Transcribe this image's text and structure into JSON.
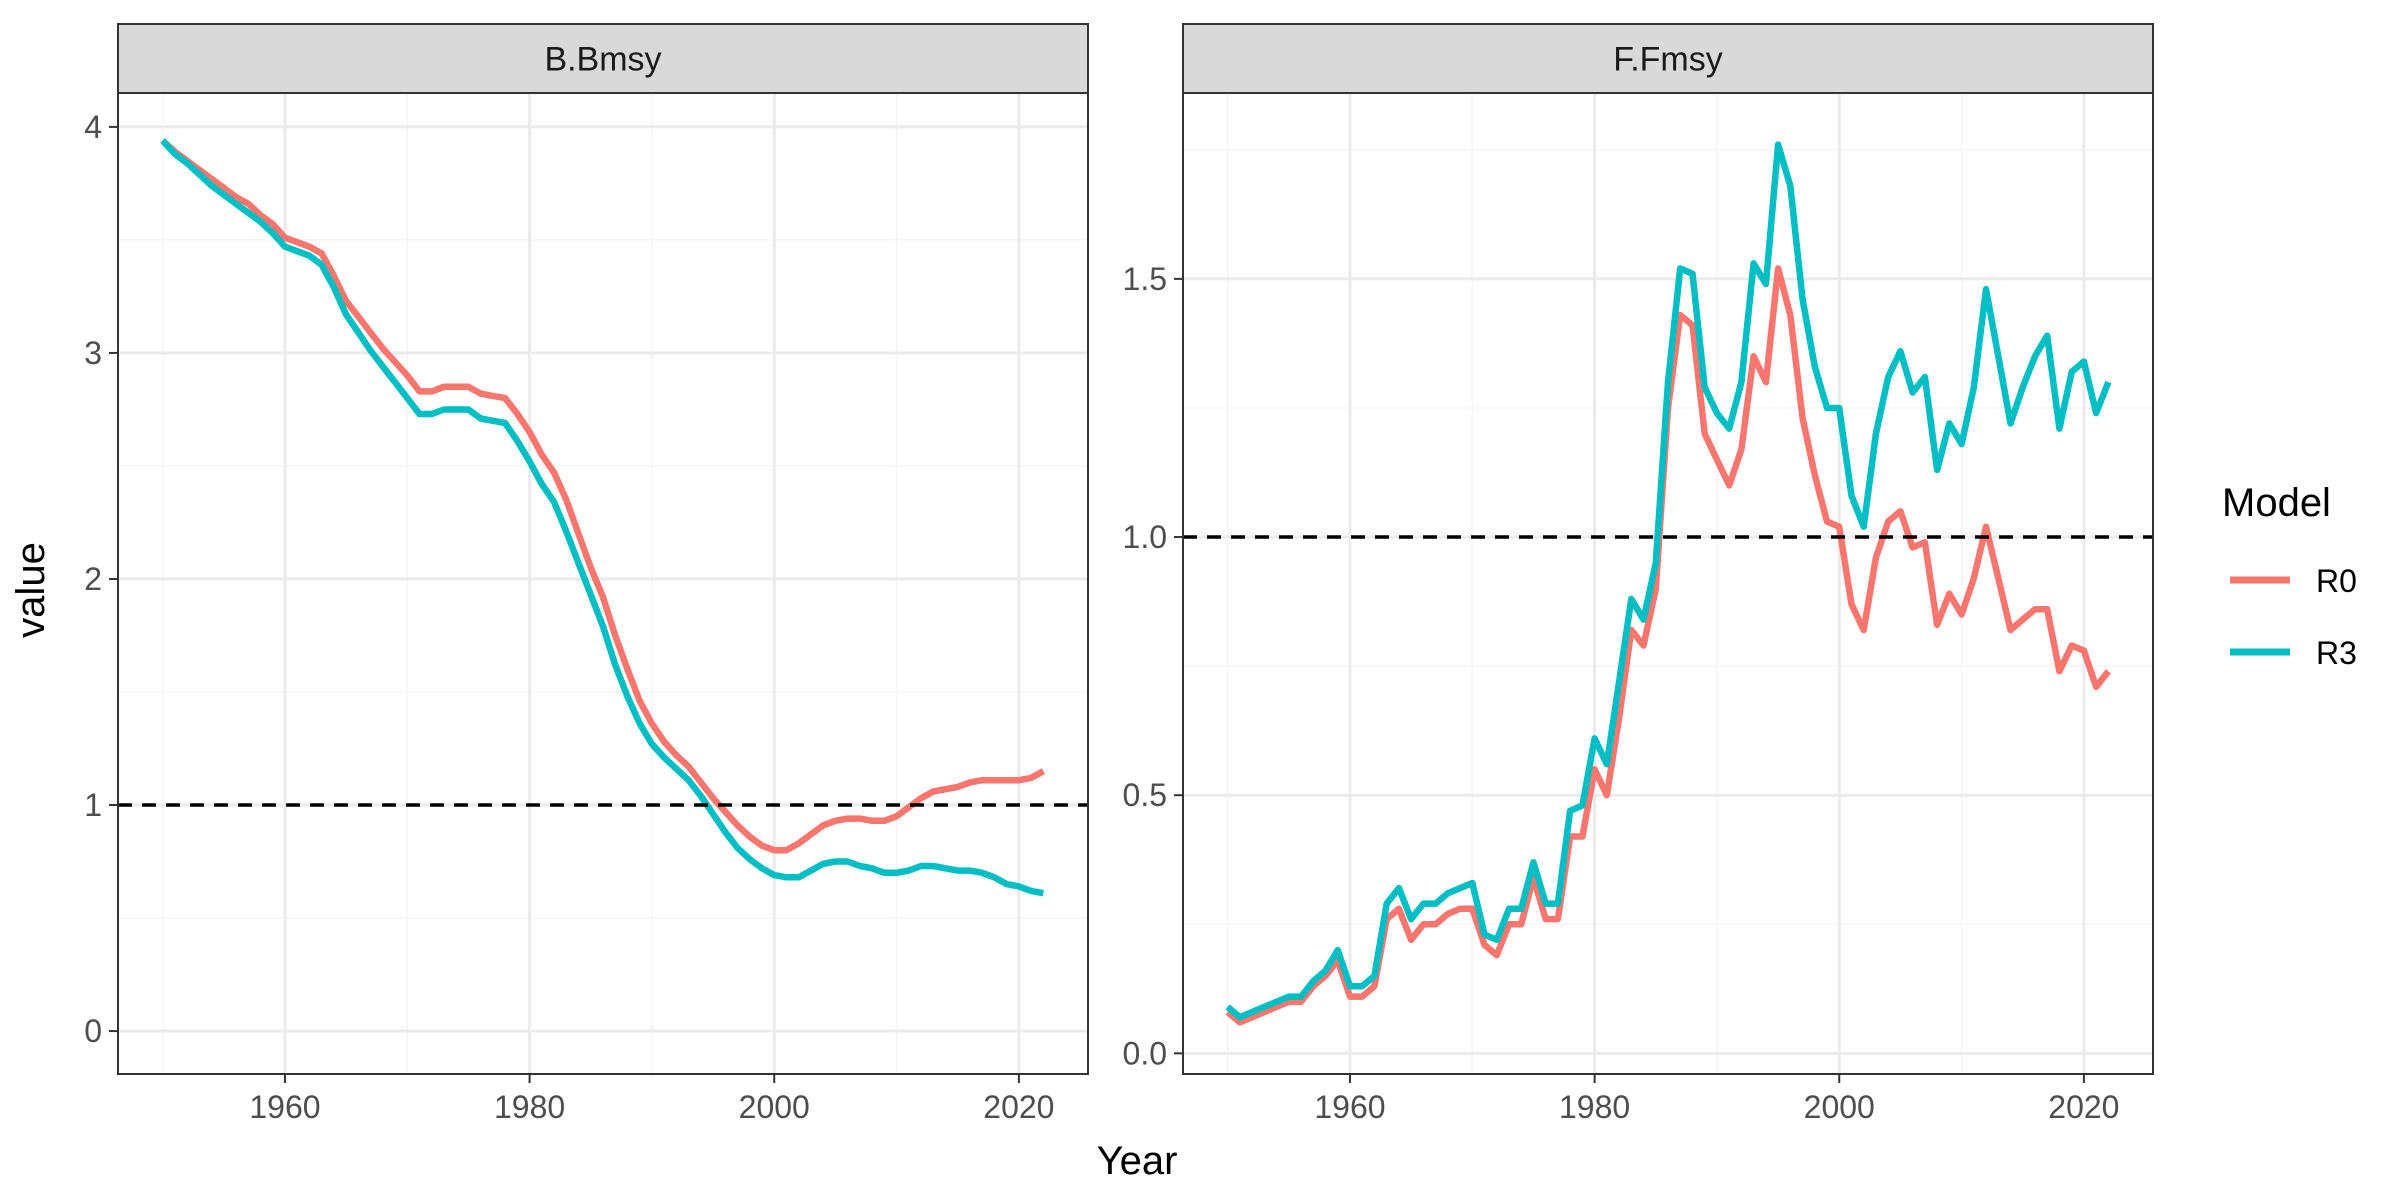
{
  "chart_data": [
    {
      "type": "line",
      "panel": "B.Bmsy",
      "x": [
        1950,
        1951,
        1952,
        1953,
        1954,
        1955,
        1956,
        1957,
        1958,
        1959,
        1960,
        1961,
        1962,
        1963,
        1964,
        1965,
        1966,
        1967,
        1968,
        1969,
        1970,
        1971,
        1972,
        1973,
        1974,
        1975,
        1976,
        1977,
        1978,
        1979,
        1980,
        1981,
        1982,
        1983,
        1984,
        1985,
        1986,
        1987,
        1988,
        1989,
        1990,
        1991,
        1992,
        1993,
        1994,
        1995,
        1996,
        1997,
        1998,
        1999,
        2000,
        2001,
        2002,
        2003,
        2004,
        2005,
        2006,
        2007,
        2008,
        2009,
        2010,
        2011,
        2012,
        2013,
        2014,
        2015,
        2016,
        2017,
        2018,
        2019,
        2020,
        2021,
        2022
      ],
      "series": [
        {
          "name": "R0",
          "values": [
            3.94,
            3.89,
            3.85,
            3.81,
            3.77,
            3.73,
            3.69,
            3.66,
            3.61,
            3.57,
            3.51,
            3.49,
            3.47,
            3.44,
            3.34,
            3.23,
            3.16,
            3.09,
            3.02,
            2.96,
            2.9,
            2.83,
            2.83,
            2.85,
            2.85,
            2.85,
            2.82,
            2.81,
            2.8,
            2.73,
            2.65,
            2.55,
            2.47,
            2.35,
            2.2,
            2.05,
            1.92,
            1.75,
            1.6,
            1.46,
            1.36,
            1.28,
            1.22,
            1.17,
            1.1,
            1.03,
            0.97,
            0.91,
            0.86,
            0.82,
            0.8,
            0.8,
            0.83,
            0.87,
            0.91,
            0.93,
            0.94,
            0.94,
            0.93,
            0.93,
            0.95,
            0.99,
            1.03,
            1.06,
            1.07,
            1.08,
            1.1,
            1.11,
            1.11,
            1.11,
            1.11,
            1.12,
            1.15
          ]
        },
        {
          "name": "R3",
          "values": [
            3.94,
            3.88,
            3.84,
            3.79,
            3.74,
            3.7,
            3.66,
            3.62,
            3.58,
            3.53,
            3.47,
            3.45,
            3.43,
            3.39,
            3.29,
            3.17,
            3.09,
            3.01,
            2.94,
            2.87,
            2.8,
            2.73,
            2.73,
            2.75,
            2.75,
            2.75,
            2.71,
            2.7,
            2.69,
            2.61,
            2.52,
            2.42,
            2.34,
            2.21,
            2.07,
            1.93,
            1.79,
            1.62,
            1.48,
            1.36,
            1.27,
            1.21,
            1.16,
            1.11,
            1.04,
            0.96,
            0.88,
            0.81,
            0.76,
            0.72,
            0.69,
            0.68,
            0.68,
            0.71,
            0.74,
            0.75,
            0.75,
            0.73,
            0.72,
            0.7,
            0.7,
            0.71,
            0.73,
            0.73,
            0.72,
            0.71,
            0.71,
            0.7,
            0.68,
            0.65,
            0.64,
            0.62,
            0.61
          ]
        }
      ],
      "ylim": [
        -0.19,
        4.15
      ],
      "xlim": [
        1946.35,
        2025.65
      ],
      "yticks": [
        0,
        1,
        2,
        3,
        4
      ],
      "ytick_labels": [
        "0",
        "1",
        "2",
        "3",
        "4"
      ],
      "xticks": [
        1960,
        1980,
        2000,
        2020
      ],
      "xtick_labels": [
        "1960",
        "1980",
        "2000",
        "2020"
      ],
      "reference_line": 1.0,
      "grid": true
    },
    {
      "type": "line",
      "panel": "F.Fmsy",
      "x": [
        1950,
        1951,
        1952,
        1953,
        1954,
        1955,
        1956,
        1957,
        1958,
        1959,
        1960,
        1961,
        1962,
        1963,
        1964,
        1965,
        1966,
        1967,
        1968,
        1969,
        1970,
        1971,
        1972,
        1973,
        1974,
        1975,
        1976,
        1977,
        1978,
        1979,
        1980,
        1981,
        1982,
        1983,
        1984,
        1985,
        1986,
        1987,
        1988,
        1989,
        1990,
        1991,
        1992,
        1993,
        1994,
        1995,
        1996,
        1997,
        1998,
        1999,
        2000,
        2001,
        2002,
        2003,
        2004,
        2005,
        2006,
        2007,
        2008,
        2009,
        2010,
        2011,
        2012,
        2013,
        2014,
        2015,
        2016,
        2017,
        2018,
        2019,
        2020,
        2021,
        2022
      ],
      "series": [
        {
          "name": "R0",
          "values": [
            0.08,
            0.06,
            0.07,
            0.08,
            0.09,
            0.1,
            0.1,
            0.13,
            0.15,
            0.18,
            0.11,
            0.11,
            0.13,
            0.26,
            0.28,
            0.22,
            0.25,
            0.25,
            0.27,
            0.28,
            0.28,
            0.21,
            0.19,
            0.25,
            0.25,
            0.34,
            0.26,
            0.26,
            0.42,
            0.42,
            0.55,
            0.5,
            0.65,
            0.82,
            0.79,
            0.9,
            1.25,
            1.43,
            1.41,
            1.2,
            1.15,
            1.1,
            1.17,
            1.35,
            1.3,
            1.52,
            1.43,
            1.23,
            1.12,
            1.03,
            1.02,
            0.87,
            0.82,
            0.96,
            1.03,
            1.05,
            0.98,
            0.99,
            0.83,
            0.89,
            0.85,
            0.92,
            1.02,
            0.92,
            0.82,
            0.84,
            0.86,
            0.86,
            0.74,
            0.79,
            0.78,
            0.71,
            0.74
          ]
        },
        {
          "name": "R3",
          "values": [
            0.09,
            0.07,
            0.08,
            0.09,
            0.1,
            0.11,
            0.11,
            0.14,
            0.16,
            0.2,
            0.13,
            0.13,
            0.15,
            0.29,
            0.32,
            0.26,
            0.29,
            0.29,
            0.31,
            0.32,
            0.33,
            0.23,
            0.22,
            0.28,
            0.28,
            0.37,
            0.29,
            0.29,
            0.47,
            0.48,
            0.61,
            0.56,
            0.72,
            0.88,
            0.84,
            0.95,
            1.3,
            1.52,
            1.51,
            1.29,
            1.24,
            1.21,
            1.3,
            1.53,
            1.49,
            1.76,
            1.68,
            1.46,
            1.33,
            1.25,
            1.25,
            1.08,
            1.02,
            1.2,
            1.31,
            1.36,
            1.28,
            1.31,
            1.13,
            1.22,
            1.18,
            1.29,
            1.48,
            1.35,
            1.22,
            1.29,
            1.35,
            1.39,
            1.21,
            1.32,
            1.34,
            1.24,
            1.3
          ]
        }
      ],
      "ylim": [
        -0.04,
        1.86
      ],
      "xlim": [
        1946.35,
        2025.65
      ],
      "yticks": [
        0,
        0.5,
        1,
        1.5
      ],
      "ytick_labels": [
        "0.0",
        "0.5",
        "1.0",
        "1.5"
      ],
      "xticks": [
        1960,
        1980,
        2000,
        2020
      ],
      "xtick_labels": [
        "1960",
        "1980",
        "2000",
        "2020"
      ],
      "reference_line": 1.0,
      "grid": true
    }
  ],
  "xlabel": "Year",
  "ylabel": "value",
  "legend": {
    "title": "Model",
    "placement": "right",
    "entries": [
      {
        "label": "R0",
        "color": "#F8766D"
      },
      {
        "label": "R3",
        "color": "#00BFC4"
      }
    ]
  },
  "colors": {
    "R0": "#F8766D",
    "R3": "#00BFC4",
    "strip_fill": "#D9D9D9",
    "panel_border": "#333333",
    "grid_major": "#EBEBEB",
    "grid_minor": "#F5F5F5",
    "reference_line": "#000000"
  }
}
